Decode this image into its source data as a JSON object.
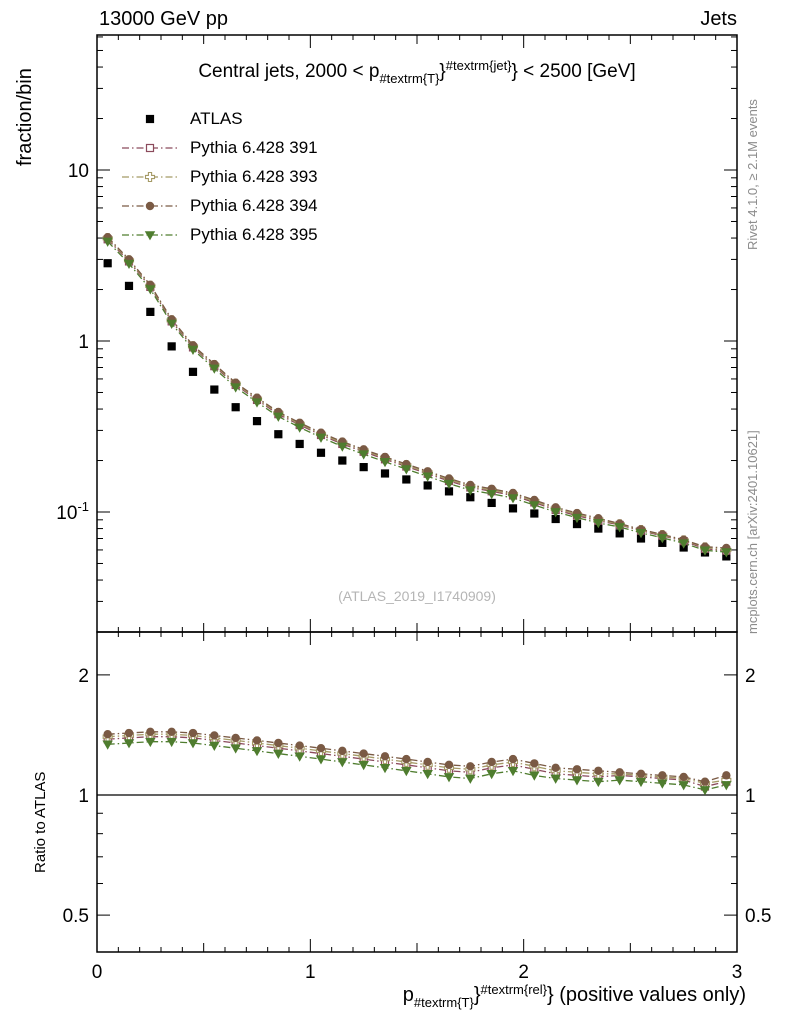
{
  "header": {
    "left": "13000 GeV pp",
    "right": "Jets"
  },
  "side": {
    "top_right": "Rivet 4.1.0, ≥ 2.1M events",
    "bottom_right": "mcplots.cern.ch [arXiv:2401.10621]"
  },
  "watermark": "(ATLAS_2019_I1740909)",
  "title": {
    "pre": "Central jets, 2000 < p",
    "sub": "#textrm{T}",
    "brace": "}",
    "sup": "#textrm{jet}",
    "post": "} < 2500 [GeV]"
  },
  "xlabel": {
    "pre": "p",
    "sub": "#textrm{T}",
    "brace": "}",
    "sup": "#textrm{rel}",
    "post": "} (positive values only)"
  },
  "ylabel_top": "fraction/bin",
  "ylabel_ratio": "Ratio to ATLAS",
  "chart_data": {
    "type": "line",
    "title": "Central jets, 2000 < p_{#textrm{T}}}^{#textrm{jet}} < 2500 [GeV]",
    "xlabel": "p_{#textrm{T}}}^{#textrm{rel}} (positive values only)",
    "ylabel": "fraction/bin",
    "ratio_ylabel": "Ratio to ATLAS",
    "legend_position": "top-left",
    "xlim": [
      0,
      3
    ],
    "x_ticks": [
      0,
      1,
      2,
      3
    ],
    "top": {
      "ylog": true,
      "ylim": [
        0.02,
        61
      ],
      "yticks": [
        {
          "v": 10,
          "label": "10"
        },
        {
          "v": 1,
          "label": "1"
        },
        {
          "v": 0.1,
          "label": "10^{-1}"
        }
      ]
    },
    "ratio": {
      "ylog": true,
      "ylim": [
        0.41,
        2.56
      ],
      "yticks": [
        {
          "v": 2,
          "label": "2"
        },
        {
          "v": 1,
          "label": "1"
        },
        {
          "v": 0.5,
          "label": "0.5"
        }
      ],
      "minor_ticks": [
        0.6,
        0.7,
        0.8,
        0.9
      ]
    },
    "x": [
      0.05,
      0.15,
      0.25,
      0.35,
      0.45,
      0.55,
      0.65,
      0.75,
      0.85,
      0.95,
      1.05,
      1.15,
      1.25,
      1.35,
      1.45,
      1.55,
      1.65,
      1.75,
      1.85,
      1.95,
      2.05,
      2.15,
      2.25,
      2.35,
      2.45,
      2.55,
      2.65,
      2.75,
      2.85,
      2.95
    ],
    "series": [
      {
        "name": "ATLAS",
        "marker": "square",
        "filled": true,
        "color": "#000000",
        "line": false,
        "values": [
          2.85,
          2.1,
          1.48,
          0.93,
          0.66,
          0.52,
          0.41,
          0.34,
          0.285,
          0.25,
          0.222,
          0.2,
          0.183,
          0.168,
          0.155,
          0.143,
          0.132,
          0.122,
          0.113,
          0.105,
          0.098,
          0.091,
          0.085,
          0.08,
          0.075,
          0.07,
          0.066,
          0.062,
          0.058,
          0.055
        ]
      },
      {
        "name": "Pythia 6.428 391",
        "marker": "square",
        "filled": false,
        "color": "#8b4a5c",
        "line": true,
        "ratio": [
          1.38,
          1.39,
          1.4,
          1.4,
          1.39,
          1.37,
          1.35,
          1.33,
          1.31,
          1.29,
          1.27,
          1.25,
          1.23,
          1.21,
          1.19,
          1.17,
          1.15,
          1.14,
          1.17,
          1.19,
          1.16,
          1.13,
          1.12,
          1.11,
          1.12,
          1.11,
          1.1,
          1.09,
          1.05,
          1.08
        ]
      },
      {
        "name": "Pythia 6.428 393",
        "marker": "plus",
        "filled": false,
        "color": "#a59a66",
        "line": true,
        "ratio": [
          1.4,
          1.41,
          1.42,
          1.42,
          1.41,
          1.39,
          1.37,
          1.35,
          1.33,
          1.31,
          1.29,
          1.27,
          1.25,
          1.23,
          1.21,
          1.19,
          1.17,
          1.16,
          1.19,
          1.21,
          1.18,
          1.15,
          1.14,
          1.13,
          1.13,
          1.12,
          1.11,
          1.1,
          1.07,
          1.09
        ]
      },
      {
        "name": "Pythia 6.428 394",
        "marker": "circle",
        "filled": true,
        "color": "#7a5a44",
        "line": true,
        "ratio": [
          1.42,
          1.43,
          1.44,
          1.44,
          1.43,
          1.41,
          1.39,
          1.37,
          1.35,
          1.33,
          1.31,
          1.29,
          1.27,
          1.25,
          1.23,
          1.21,
          1.19,
          1.18,
          1.21,
          1.23,
          1.2,
          1.17,
          1.16,
          1.15,
          1.14,
          1.13,
          1.12,
          1.11,
          1.08,
          1.12
        ]
      },
      {
        "name": "Pythia 6.428 395",
        "marker": "triangle-down",
        "filled": true,
        "color": "#4f7d2f",
        "line": true,
        "ratio": [
          1.34,
          1.35,
          1.36,
          1.36,
          1.35,
          1.33,
          1.31,
          1.29,
          1.27,
          1.25,
          1.23,
          1.21,
          1.19,
          1.17,
          1.15,
          1.13,
          1.11,
          1.1,
          1.13,
          1.15,
          1.12,
          1.1,
          1.09,
          1.08,
          1.09,
          1.08,
          1.07,
          1.06,
          1.03,
          1.06
        ]
      }
    ]
  }
}
